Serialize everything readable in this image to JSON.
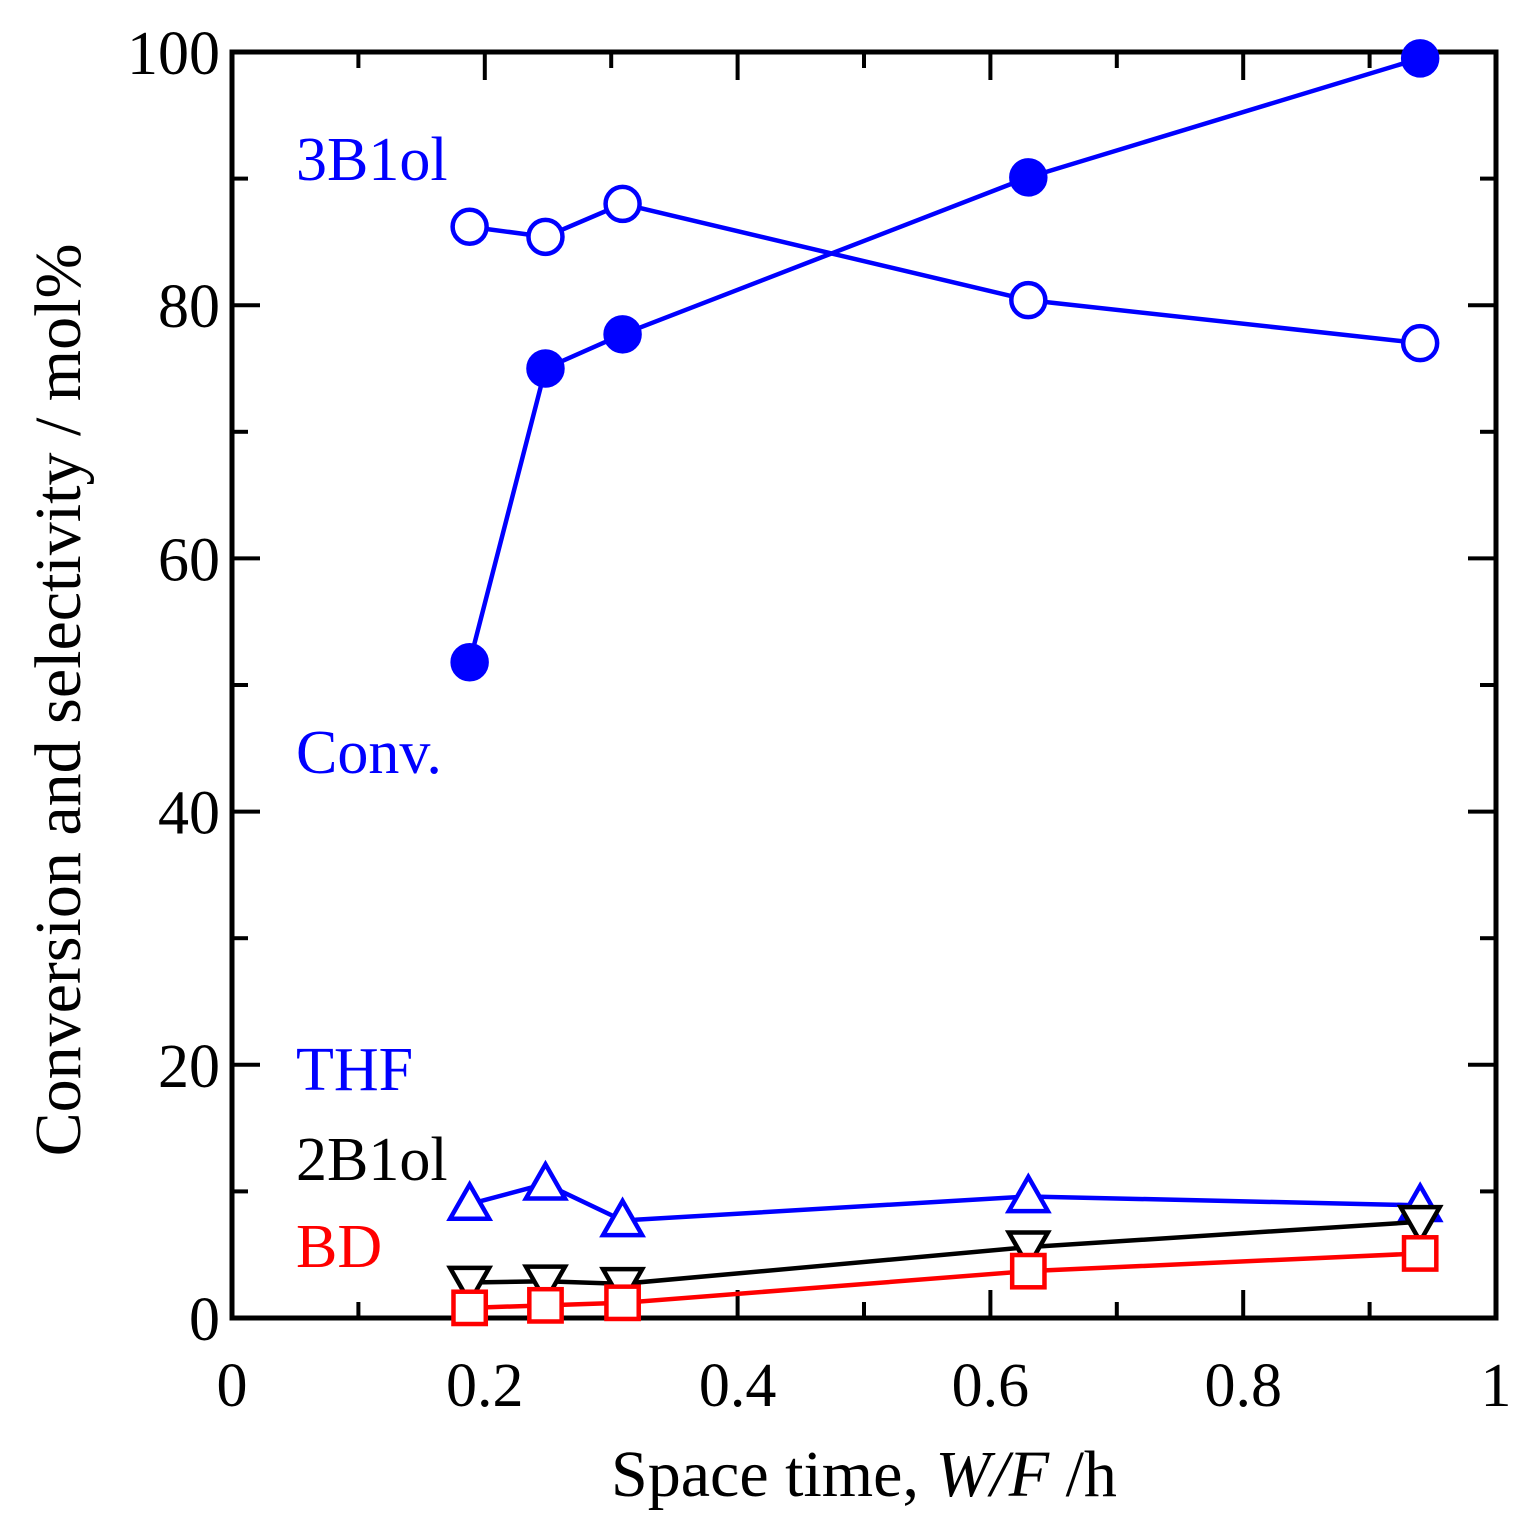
{
  "chart_data": {
    "type": "line",
    "xlabel_prefix": "Space time, ",
    "xlabel_var": "W/F",
    "xlabel_unit": " /h",
    "ylabel": "Conversion and selectivity / mol%",
    "xlim": [
      0,
      1
    ],
    "ylim": [
      0,
      100
    ],
    "xticks": [
      0,
      0.2,
      0.4,
      0.6,
      0.8,
      1
    ],
    "xtick_labels": [
      "0",
      "0.2",
      "0.4",
      "0.6",
      "0.8",
      "1"
    ],
    "yticks": [
      0,
      20,
      40,
      60,
      80,
      100
    ],
    "ytick_labels": [
      "0",
      "20",
      "40",
      "60",
      "80",
      "100"
    ],
    "grid": false,
    "x": [
      0.188,
      0.248,
      0.309,
      0.63,
      0.94
    ],
    "series": [
      {
        "name": "Conv.",
        "color": "#0000ff",
        "marker": "filled-circle",
        "values": [
          51.8,
          75.0,
          77.7,
          90.1,
          99.5
        ]
      },
      {
        "name": "3B1ol",
        "color": "#0000ff",
        "marker": "open-circle",
        "values": [
          86.2,
          85.4,
          88.0,
          80.4,
          77.0
        ]
      },
      {
        "name": "THF",
        "color": "#0000ff",
        "marker": "open-triangle-up",
        "values": [
          9.0,
          10.6,
          7.7,
          9.6,
          8.9
        ]
      },
      {
        "name": "2B1ol",
        "color": "#000000",
        "marker": "open-triangle-down",
        "values": [
          2.8,
          2.9,
          2.7,
          5.6,
          7.6
        ]
      },
      {
        "name": "BD",
        "color": "#ff0000",
        "marker": "open-square",
        "values": [
          0.8,
          1.0,
          1.2,
          3.7,
          5.1
        ]
      }
    ],
    "labels": {
      "conv": "Conv.",
      "b3ol": "3B1ol",
      "thf": "THF",
      "b2ol": "2B1ol",
      "bd": "BD"
    }
  }
}
